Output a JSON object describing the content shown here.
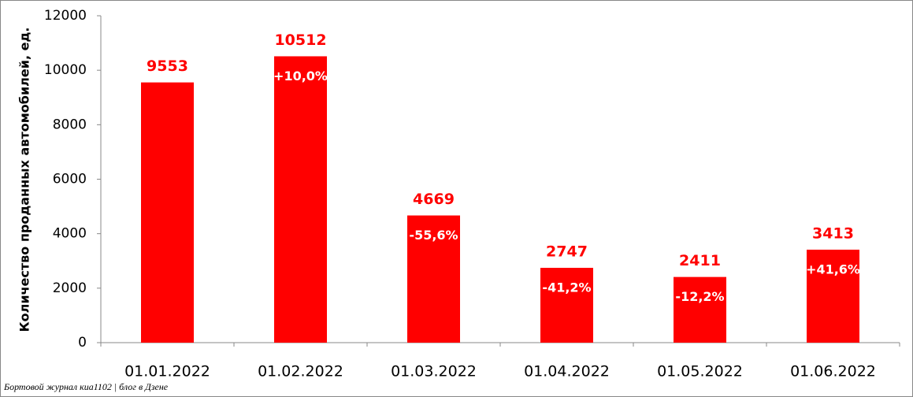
{
  "chart_data": {
    "type": "bar",
    "y_axis_label": "Количество проданных  автомобилей, ед.",
    "categories": [
      "01.01.2022",
      "01.02.2022",
      "01.03.2022",
      "01.04.2022",
      "01.05.2022",
      "01.06.2022"
    ],
    "values": [
      9553,
      10512,
      4669,
      2747,
      2411,
      3413
    ],
    "change_labels": [
      null,
      "+10,0%",
      "-55,6%",
      "-41,2%",
      "-12,2%",
      "+41,6%"
    ],
    "color": "#ff0000",
    "ylim": [
      0,
      12000
    ],
    "yticks": [
      0,
      2000,
      4000,
      6000,
      8000,
      10000,
      12000
    ],
    "grid": false,
    "watermark": "Бортовой журнал киа1102 | блог в Дзене"
  }
}
